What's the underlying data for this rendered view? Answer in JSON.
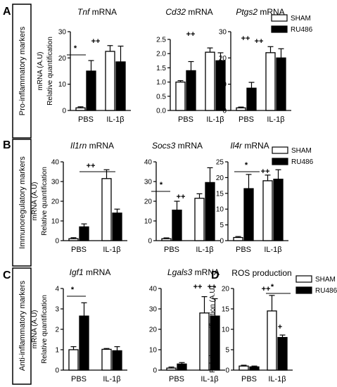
{
  "figure": {
    "panels": [
      {
        "label": "A",
        "row_title": "Pro-inflammatory markers"
      },
      {
        "label": "B",
        "row_title": "Immunoregulatory markers"
      },
      {
        "label": "C",
        "row_title": "Anti-inflammatory markers"
      },
      {
        "label": "D"
      }
    ],
    "legends": [
      {
        "sham": "SHAM",
        "ru486": "RU486"
      },
      {
        "sham": "SHAM",
        "ru486": "RU486"
      },
      {
        "sham": "SHAM",
        "ru486": "RU486"
      }
    ],
    "colors": {
      "sham": "#ffffff",
      "ru486": "#000000",
      "axis": "#000000"
    }
  },
  "chart_data": [
    {
      "type": "bar",
      "gene": "Tnf",
      "suffix": " mRNA",
      "ylabel": "Relative quantification",
      "ylabel2": "mRNA (A.U)",
      "categories": [
        "PBS",
        "IL-1β"
      ],
      "ylim": [
        0,
        30
      ],
      "yticks": [
        "0",
        "10",
        "20",
        "30"
      ],
      "series": [
        {
          "name": "SHAM",
          "values": [
            1,
            22.5
          ],
          "errors": [
            0.4,
            2.2
          ]
        },
        {
          "name": "RU486",
          "values": [
            15,
            18.5
          ],
          "errors": [
            4,
            6
          ]
        }
      ],
      "sig_markers": [
        "*",
        "++"
      ]
    },
    {
      "type": "bar",
      "gene": "Cd32",
      "suffix": " mRNA",
      "categories": [
        "PBS",
        "IL-1β"
      ],
      "ylim": [
        0,
        2.5
      ],
      "yticks": [
        "0.0",
        "0.5",
        "1.0",
        "1.5",
        "2.0",
        "2.5"
      ],
      "series": [
        {
          "name": "SHAM",
          "values": [
            1.0,
            2.05
          ],
          "errors": [
            0.05,
            0.15
          ]
        },
        {
          "name": "RU486",
          "values": [
            1.4,
            1.75
          ],
          "errors": [
            0.32,
            0.28
          ]
        }
      ],
      "sig_markers": [
        "++"
      ]
    },
    {
      "type": "bar",
      "gene": "Ptgs2",
      "suffix": " mRNA",
      "categories": [
        "PBS",
        "IL-1β"
      ],
      "ylim": [
        0,
        30
      ],
      "yticks": [
        "0",
        "10",
        "20",
        "30"
      ],
      "series": [
        {
          "name": "SHAM",
          "values": [
            1,
            22
          ],
          "errors": [
            0.3,
            2.3
          ]
        },
        {
          "name": "RU486",
          "values": [
            8.5,
            20
          ],
          "errors": [
            2.2,
            3.5
          ]
        }
      ],
      "sig_markers": [
        "++",
        "++"
      ]
    },
    {
      "type": "bar",
      "gene": "Il1rn",
      "suffix": " mRNA",
      "ylabel": "Relative quantification",
      "ylabel2": "mRNA (A.U)",
      "categories": [
        "PBS",
        "IL-1β"
      ],
      "ylim": [
        0,
        40
      ],
      "yticks": [
        "0",
        "10",
        "20",
        "30",
        "40"
      ],
      "series": [
        {
          "name": "SHAM",
          "values": [
            1,
            31.5
          ],
          "errors": [
            0.5,
            4.5
          ]
        },
        {
          "name": "RU486",
          "values": [
            7,
            14
          ],
          "errors": [
            1.5,
            2
          ]
        }
      ],
      "sig_markers": [
        "++"
      ]
    },
    {
      "type": "bar",
      "gene": "Socs3",
      "suffix": " mRNA",
      "categories": [
        "PBS",
        "IL-1β"
      ],
      "ylim": [
        0,
        40
      ],
      "yticks": [
        "0",
        "10",
        "20",
        "30",
        "40"
      ],
      "series": [
        {
          "name": "SHAM",
          "values": [
            1,
            21.5
          ],
          "errors": [
            0.4,
            2.3
          ]
        },
        {
          "name": "RU486",
          "values": [
            15.5,
            29.5
          ],
          "errors": [
            4.5,
            7.5
          ]
        }
      ],
      "sig_markers": [
        "*",
        "++"
      ]
    },
    {
      "type": "bar",
      "gene": "Il4r",
      "suffix": " mRNA",
      "categories": [
        "PBS",
        "IL-1β"
      ],
      "ylim": [
        0,
        25
      ],
      "yticks": [
        "0",
        "5",
        "10",
        "15",
        "20",
        "25"
      ],
      "series": [
        {
          "name": "SHAM",
          "values": [
            1,
            19
          ],
          "errors": [
            0.3,
            1.8
          ]
        },
        {
          "name": "RU486",
          "values": [
            16.5,
            19.5
          ],
          "errors": [
            4.5,
            3
          ]
        }
      ],
      "sig_markers": [
        "*",
        "++"
      ]
    },
    {
      "type": "bar",
      "gene": "Igf1",
      "suffix": " mRNA",
      "ylabel": "Relative quantification",
      "ylabel2": "mRNA (A.U)",
      "categories": [
        "PBS",
        "IL-1β"
      ],
      "ylim": [
        0,
        4
      ],
      "yticks": [
        "0",
        "1",
        "2",
        "3",
        "4"
      ],
      "series": [
        {
          "name": "SHAM",
          "values": [
            1.0,
            1.02
          ],
          "errors": [
            0.15,
            0.04
          ]
        },
        {
          "name": "RU486",
          "values": [
            2.65,
            0.95
          ],
          "errors": [
            0.65,
            0.2
          ]
        }
      ],
      "sig_markers": [
        "*"
      ]
    },
    {
      "type": "bar",
      "gene": "Lgals3",
      "suffix": " mRNA",
      "categories": [
        "PBS",
        "IL-1β"
      ],
      "ylim": [
        0,
        40
      ],
      "yticks": [
        "0",
        "10",
        "20",
        "30",
        "40"
      ],
      "series": [
        {
          "name": "SHAM",
          "values": [
            1,
            28
          ],
          "errors": [
            0.5,
            8
          ]
        },
        {
          "name": "RU486",
          "values": [
            3,
            26.5
          ],
          "errors": [
            0.7,
            8.5
          ]
        }
      ],
      "sig_markers": [
        "++",
        "++"
      ]
    },
    {
      "type": "bar",
      "gene": "",
      "title": "ROS production",
      "ylabel": "Relative quantification (A.U)",
      "categories": [
        "PBS",
        "IL-1β"
      ],
      "ylim": [
        0,
        20
      ],
      "yticks": [
        "0",
        "5",
        "10",
        "15",
        "20"
      ],
      "series": [
        {
          "name": "SHAM",
          "values": [
            1,
            14.5
          ],
          "errors": [
            0.2,
            3.8
          ]
        },
        {
          "name": "RU486",
          "values": [
            0.8,
            8
          ],
          "errors": [
            0.2,
            0.6
          ]
        }
      ],
      "sig_markers": [
        "++",
        "*",
        "+"
      ]
    }
  ]
}
